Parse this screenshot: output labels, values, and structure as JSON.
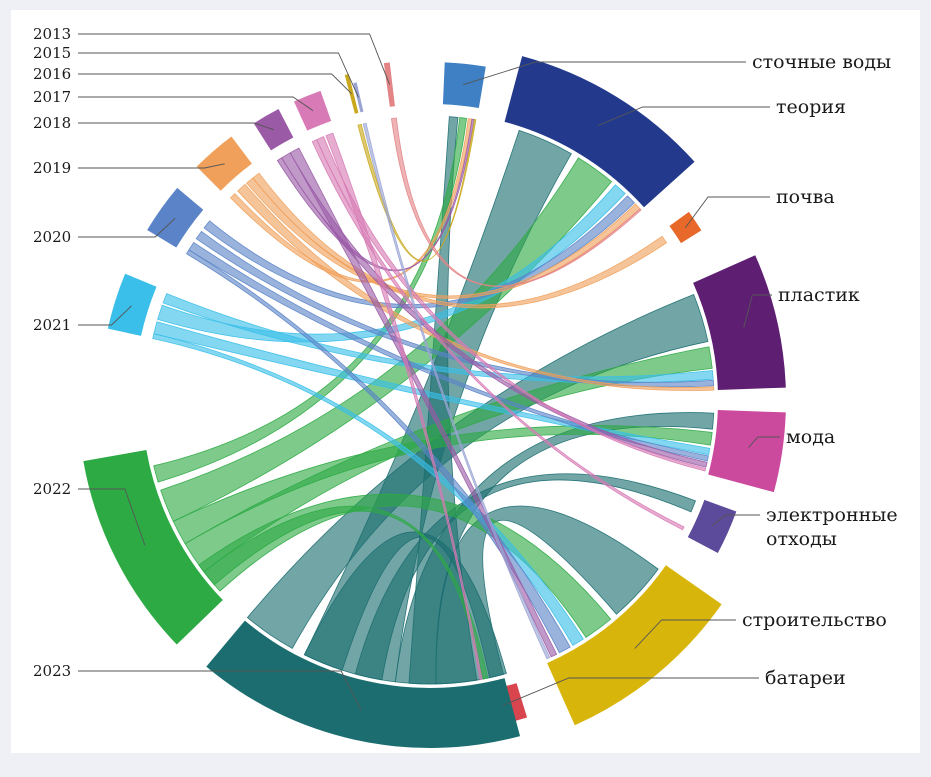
{
  "chart_data": {
    "type": "chord",
    "title": "",
    "topics": [
      {
        "label": "сточные воды",
        "color": "#3f7fc4"
      },
      {
        "label": "теория",
        "color": "#233a8c"
      },
      {
        "label": "почва",
        "color": "#e8682a"
      },
      {
        "label": "пластик",
        "color": "#5e1f73"
      },
      {
        "label": "мода",
        "color": "#cc4a9e"
      },
      {
        "label": "электронные отходы",
        "color": "#5c4a9a"
      },
      {
        "label": "строительство",
        "color": "#d8b50a"
      },
      {
        "label": "батареи",
        "color": "#d9454e"
      }
    ],
    "years": [
      {
        "label": "2013",
        "color": "#e38486"
      },
      {
        "label": "2015",
        "color": "#9aa4d4"
      },
      {
        "label": "2016",
        "color": "#c9a81c"
      },
      {
        "label": "2017",
        "color": "#d77ab5"
      },
      {
        "label": "2018",
        "color": "#9a5aa6"
      },
      {
        "label": "2019",
        "color": "#f0a05a"
      },
      {
        "label": "2020",
        "color": "#5b84c8"
      },
      {
        "label": "2021",
        "color": "#39bfe9"
      },
      {
        "label": "2022",
        "color": "#2daa44"
      },
      {
        "label": "2023",
        "color": "#1b6d70"
      }
    ]
  }
}
